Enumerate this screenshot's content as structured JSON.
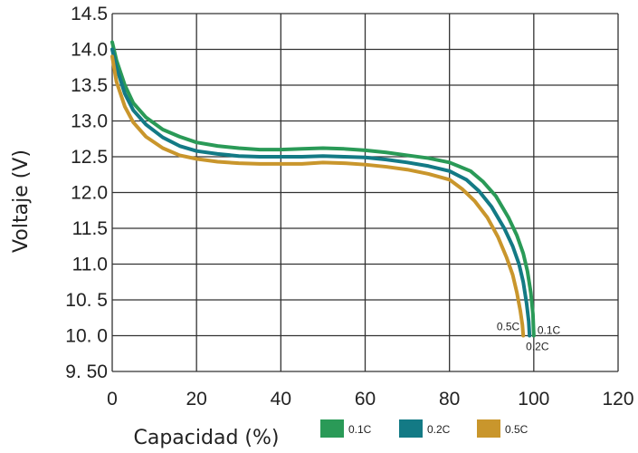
{
  "chart_data": {
    "type": "line",
    "title": "",
    "xlabel": "Capacidad (%)",
    "ylabel": "Voltaje (V)",
    "xlim": [
      0,
      120
    ],
    "ylim": [
      9.5,
      14.5
    ],
    "x_ticks": [
      "0",
      "20",
      "40",
      "60",
      "80",
      "100",
      "120"
    ],
    "y_ticks": [
      "14.5",
      "14.0",
      "13.5",
      "13.0",
      "12.5",
      "12.0",
      "11.5",
      "11.0",
      "10. 5",
      "10. 0",
      "9. 50"
    ],
    "grid": true,
    "legend_position": "bottom",
    "series": [
      {
        "name": "0.1C",
        "color": "#2a9a57",
        "end_label": "0.1C",
        "x": [
          0,
          1,
          3,
          5,
          8,
          12,
          16,
          20,
          25,
          30,
          35,
          40,
          45,
          50,
          55,
          60,
          65,
          70,
          75,
          80,
          85,
          88,
          91,
          94,
          96,
          97.5,
          98.5,
          99.3,
          99.8,
          100
        ],
        "y": [
          14.1,
          13.85,
          13.5,
          13.25,
          13.05,
          12.88,
          12.78,
          12.7,
          12.65,
          12.62,
          12.6,
          12.6,
          12.61,
          12.62,
          12.61,
          12.59,
          12.56,
          12.52,
          12.48,
          12.42,
          12.3,
          12.15,
          11.95,
          11.65,
          11.4,
          11.15,
          10.9,
          10.6,
          10.3,
          10.0
        ]
      },
      {
        "name": "0.2C",
        "color": "#137a85",
        "end_label": "0.2C",
        "x": [
          0,
          1,
          3,
          5,
          8,
          12,
          16,
          20,
          25,
          30,
          35,
          40,
          45,
          50,
          55,
          60,
          65,
          70,
          75,
          80,
          84,
          87,
          90,
          93,
          95,
          96.5,
          97.5,
          98.3,
          98.8,
          99
        ],
        "y": [
          14.0,
          13.75,
          13.38,
          13.15,
          12.95,
          12.77,
          12.65,
          12.58,
          12.54,
          12.51,
          12.5,
          12.5,
          12.5,
          12.51,
          12.5,
          12.49,
          12.46,
          12.42,
          12.37,
          12.3,
          12.18,
          12.02,
          11.8,
          11.5,
          11.25,
          11.0,
          10.75,
          10.45,
          10.2,
          10.0
        ]
      },
      {
        "name": "0.5C",
        "color": "#c9962c",
        "end_label": "0.5C",
        "x": [
          0,
          1,
          3,
          5,
          8,
          12,
          16,
          20,
          25,
          30,
          35,
          40,
          45,
          50,
          55,
          60,
          65,
          70,
          75,
          80,
          83,
          86,
          89,
          91.5,
          93.5,
          95,
          96,
          96.8,
          97.3,
          97.5
        ],
        "y": [
          13.9,
          13.55,
          13.2,
          12.98,
          12.78,
          12.62,
          12.52,
          12.47,
          12.43,
          12.41,
          12.4,
          12.4,
          12.4,
          12.42,
          12.41,
          12.39,
          12.36,
          12.32,
          12.26,
          12.18,
          12.05,
          11.88,
          11.65,
          11.38,
          11.1,
          10.85,
          10.6,
          10.35,
          10.15,
          10.0
        ]
      }
    ]
  }
}
